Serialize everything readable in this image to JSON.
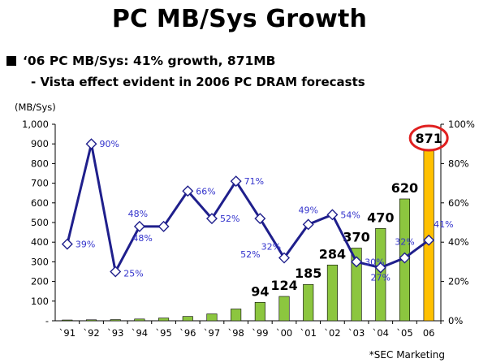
{
  "header": {
    "title": "PC MB/Sys Growth",
    "bullet": "‘06 PC MB/Sys: 41% growth, 871MB",
    "sub_bullet": "- Vista effect evident in 2006 PC DRAM forecasts"
  },
  "source": "*SEC Marketing",
  "colors": {
    "bar_green": "#8CC63F",
    "bar_highlight": "#FFC000",
    "line": "#1F1F8C",
    "marker_fill": "#FFFFFF",
    "growth_label": "#3333CC",
    "highlight_circle": "#E02020"
  },
  "chart_data": {
    "type": "bar+line",
    "left_axis_title": "(MB/Sys)",
    "categories": [
      "`91",
      "`92",
      "`93",
      "`94",
      "`95",
      "`96",
      "`97",
      "`98",
      "`99",
      "`00",
      "`01",
      "`02",
      "`03",
      "`04",
      "`05",
      "06"
    ],
    "left_ticks": [
      "-",
      "100",
      "200",
      "300",
      "400",
      "500",
      "600",
      "700",
      "800",
      "900",
      "1,000"
    ],
    "right_ticks": [
      "0%",
      "20%",
      "40%",
      "60%",
      "80%",
      "100%"
    ],
    "left_ylim": [
      0,
      1000
    ],
    "right_ylim": [
      0,
      100
    ],
    "series": [
      {
        "name": "MB/Sys",
        "type": "bar",
        "values": [
          4,
          5,
          6,
          9,
          14,
          22,
          35,
          60,
          94,
          124,
          185,
          284,
          370,
          470,
          620,
          871
        ],
        "labels": [
          "",
          "",
          "",
          "",
          "",
          "",
          "",
          "",
          "94",
          "124",
          "185",
          "284",
          "370",
          "470",
          "620",
          "871"
        ],
        "highlight_index": 15
      },
      {
        "name": "Growth",
        "type": "line",
        "axis": "right",
        "values": [
          39,
          90,
          25,
          48,
          48,
          66,
          52,
          71,
          52,
          32,
          49,
          54,
          30,
          27,
          32,
          41
        ],
        "labels": [
          "39%",
          "90%",
          "25%",
          "48%",
          "48%",
          "66%",
          "52%",
          "71%",
          "52%",
          "32%",
          "49%",
          "54%",
          "30%",
          "27%",
          "32%",
          "41%"
        ]
      }
    ],
    "grid": false,
    "legend": "none"
  }
}
